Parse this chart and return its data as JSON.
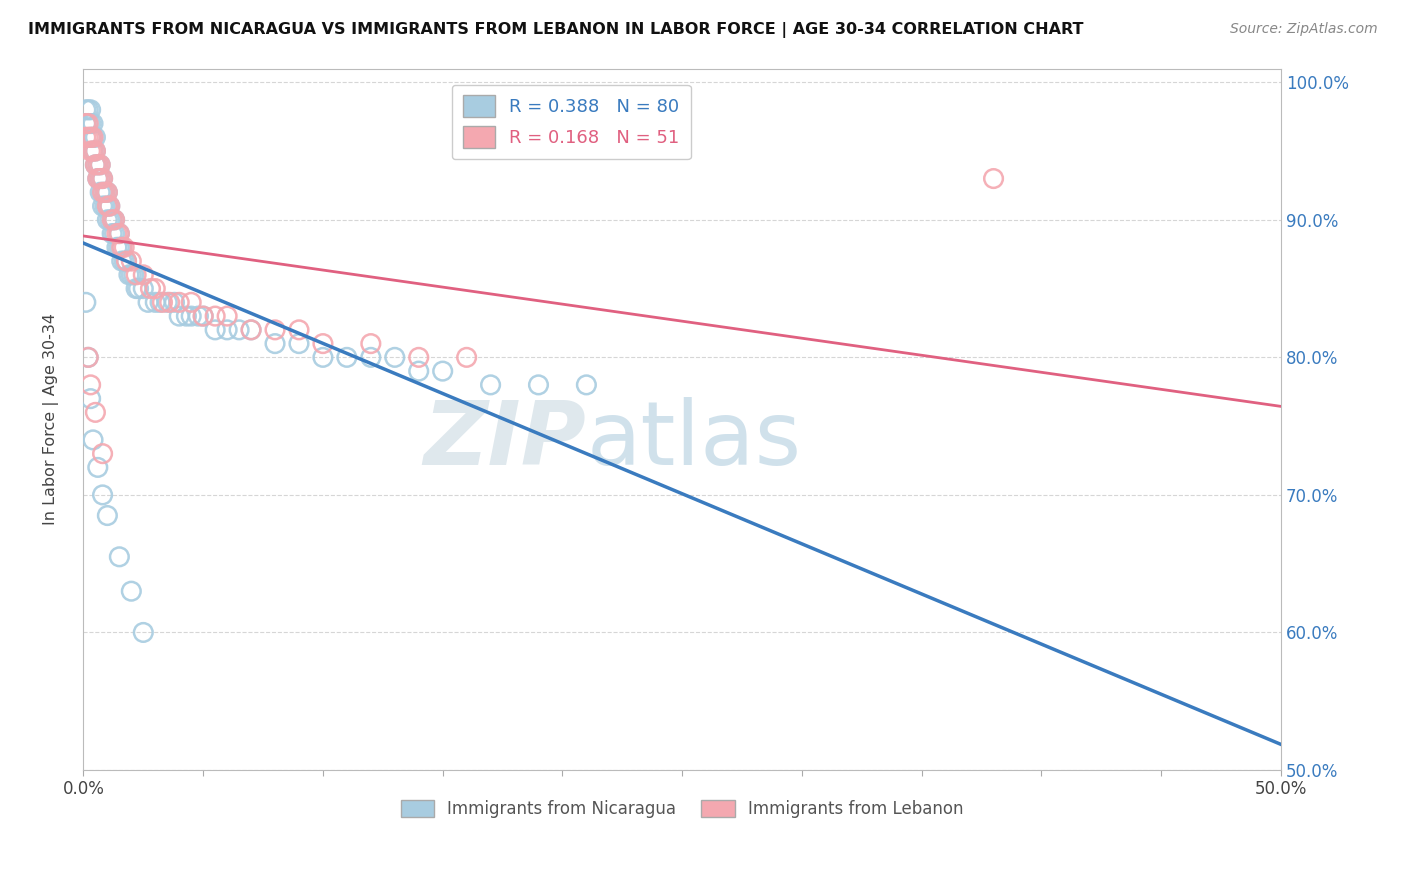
{
  "title": "IMMIGRANTS FROM NICARAGUA VS IMMIGRANTS FROM LEBANON IN LABOR FORCE | AGE 30-34 CORRELATION CHART",
  "source": "Source: ZipAtlas.com",
  "ylabel": "In Labor Force | Age 30-34",
  "x_min": 0.0,
  "x_max": 0.5,
  "y_min": 0.5,
  "y_max": 1.01,
  "nicaragua_color": "#a8cce0",
  "lebanon_color": "#f4a8b0",
  "nicaragua_line_color": "#3a7bbf",
  "lebanon_line_color": "#e06080",
  "R_nicaragua": 0.388,
  "N_nicaragua": 80,
  "R_lebanon": 0.168,
  "N_lebanon": 51,
  "legend_label_nicaragua": "Immigrants from Nicaragua",
  "legend_label_lebanon": "Immigrants from Lebanon",
  "watermark_zip": "ZIP",
  "watermark_atlas": "atlas",
  "nicaragua_x": [
    0.001,
    0.001,
    0.002,
    0.002,
    0.003,
    0.003,
    0.003,
    0.004,
    0.004,
    0.004,
    0.005,
    0.005,
    0.005,
    0.006,
    0.006,
    0.007,
    0.007,
    0.007,
    0.008,
    0.008,
    0.008,
    0.009,
    0.009,
    0.01,
    0.01,
    0.01,
    0.011,
    0.011,
    0.012,
    0.012,
    0.013,
    0.013,
    0.014,
    0.015,
    0.015,
    0.016,
    0.016,
    0.017,
    0.018,
    0.019,
    0.02,
    0.021,
    0.022,
    0.023,
    0.025,
    0.027,
    0.03,
    0.032,
    0.035,
    0.038,
    0.04,
    0.043,
    0.045,
    0.048,
    0.05,
    0.055,
    0.06,
    0.065,
    0.07,
    0.08,
    0.09,
    0.1,
    0.11,
    0.12,
    0.13,
    0.14,
    0.15,
    0.17,
    0.19,
    0.21,
    0.001,
    0.002,
    0.003,
    0.004,
    0.006,
    0.008,
    0.01,
    0.015,
    0.02,
    0.025
  ],
  "nicaragua_y": [
    0.97,
    0.98,
    0.97,
    0.98,
    0.96,
    0.97,
    0.98,
    0.95,
    0.96,
    0.97,
    0.94,
    0.95,
    0.96,
    0.93,
    0.94,
    0.92,
    0.93,
    0.94,
    0.91,
    0.92,
    0.93,
    0.91,
    0.92,
    0.9,
    0.91,
    0.92,
    0.9,
    0.91,
    0.89,
    0.9,
    0.89,
    0.9,
    0.88,
    0.88,
    0.89,
    0.87,
    0.88,
    0.87,
    0.87,
    0.86,
    0.86,
    0.86,
    0.85,
    0.85,
    0.85,
    0.84,
    0.84,
    0.84,
    0.84,
    0.84,
    0.83,
    0.83,
    0.83,
    0.83,
    0.83,
    0.82,
    0.82,
    0.82,
    0.82,
    0.81,
    0.81,
    0.8,
    0.8,
    0.8,
    0.8,
    0.79,
    0.79,
    0.78,
    0.78,
    0.78,
    0.84,
    0.8,
    0.77,
    0.74,
    0.72,
    0.7,
    0.685,
    0.655,
    0.63,
    0.6
  ],
  "lebanon_x": [
    0.001,
    0.001,
    0.002,
    0.002,
    0.003,
    0.003,
    0.004,
    0.004,
    0.005,
    0.005,
    0.006,
    0.006,
    0.007,
    0.007,
    0.008,
    0.008,
    0.009,
    0.01,
    0.01,
    0.011,
    0.012,
    0.013,
    0.014,
    0.015,
    0.016,
    0.017,
    0.018,
    0.02,
    0.022,
    0.025,
    0.028,
    0.03,
    0.033,
    0.036,
    0.04,
    0.045,
    0.05,
    0.055,
    0.06,
    0.07,
    0.08,
    0.09,
    0.1,
    0.12,
    0.14,
    0.16,
    0.002,
    0.003,
    0.005,
    0.008,
    0.38
  ],
  "lebanon_y": [
    0.96,
    0.97,
    0.96,
    0.97,
    0.95,
    0.96,
    0.95,
    0.96,
    0.94,
    0.95,
    0.93,
    0.94,
    0.93,
    0.94,
    0.92,
    0.93,
    0.92,
    0.91,
    0.92,
    0.91,
    0.9,
    0.9,
    0.89,
    0.89,
    0.88,
    0.88,
    0.87,
    0.87,
    0.86,
    0.86,
    0.85,
    0.85,
    0.84,
    0.84,
    0.84,
    0.84,
    0.83,
    0.83,
    0.83,
    0.82,
    0.82,
    0.82,
    0.81,
    0.81,
    0.8,
    0.8,
    0.8,
    0.78,
    0.76,
    0.73,
    0.93
  ]
}
